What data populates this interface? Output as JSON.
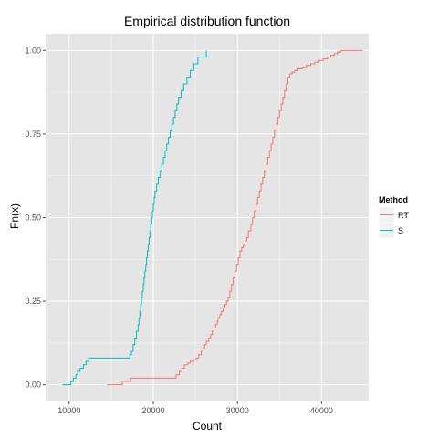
{
  "chart_data": {
    "type": "line",
    "title": "Empirical distribution function",
    "xlabel": "Count",
    "ylabel": "Fn(x)",
    "xlim": [
      7200,
      45600
    ],
    "ylim": [
      -0.05,
      1.05
    ],
    "x_ticks": [
      10000,
      20000,
      30000,
      40000
    ],
    "x_tick_labels": [
      "10000",
      "20000",
      "30000",
      "40000"
    ],
    "y_ticks": [
      0,
      0.25,
      0.5,
      0.75,
      1
    ],
    "y_tick_labels": [
      "0.00",
      "0.25",
      "0.50",
      "0.75",
      "1.00"
    ],
    "grid": true,
    "legend": {
      "title": "Method",
      "position": "right"
    },
    "colors": {
      "panel": "#e5e5e5",
      "grid": "#ffffff",
      "RT": "#f8766d",
      "S": "#00bfc4"
    },
    "series": [
      {
        "name": "RT",
        "x": [
          14500,
          16300,
          17300,
          22700,
          23100,
          23400,
          23700,
          24100,
          24400,
          24800,
          25100,
          25400,
          25700,
          25900,
          26100,
          26300,
          26600,
          26800,
          27000,
          27200,
          27400,
          27600,
          27700,
          27900,
          28100,
          28300,
          28500,
          28700,
          28900,
          29100,
          29300,
          29500,
          29700,
          29900,
          30100,
          30300,
          30500,
          30700,
          30900,
          31100,
          31300,
          31600,
          31800,
          32000,
          32200,
          32400,
          32600,
          32800,
          33000,
          33200,
          33400,
          33600,
          33800,
          34000,
          34200,
          34400,
          34600,
          34800,
          35000,
          35200,
          35400,
          35600,
          35800,
          36000,
          36200,
          36500,
          36800,
          37200,
          37700,
          38200,
          38700,
          39200,
          39700,
          40200,
          40700,
          41100,
          41500,
          41900,
          42300,
          42700,
          43000,
          43300,
          43600,
          43900
        ],
        "y": [
          0,
          0.01,
          0.02,
          0.03,
          0.04,
          0.05,
          0.06,
          0.065,
          0.07,
          0.075,
          0.08,
          0.09,
          0.1,
          0.11,
          0.12,
          0.13,
          0.14,
          0.15,
          0.16,
          0.17,
          0.18,
          0.19,
          0.2,
          0.21,
          0.22,
          0.23,
          0.24,
          0.25,
          0.26,
          0.28,
          0.3,
          0.32,
          0.34,
          0.36,
          0.38,
          0.4,
          0.41,
          0.42,
          0.43,
          0.44,
          0.46,
          0.48,
          0.5,
          0.52,
          0.54,
          0.56,
          0.58,
          0.6,
          0.62,
          0.64,
          0.66,
          0.68,
          0.7,
          0.72,
          0.74,
          0.76,
          0.78,
          0.8,
          0.82,
          0.84,
          0.86,
          0.88,
          0.9,
          0.92,
          0.93,
          0.935,
          0.94,
          0.945,
          0.95,
          0.955,
          0.96,
          0.965,
          0.97,
          0.975,
          0.98,
          0.985,
          0.99,
          0.995,
          1.0,
          1.0,
          1.0,
          1.0,
          1.0,
          1.0
        ]
      },
      {
        "name": "S",
        "x": [
          9200,
          10200,
          10500,
          10800,
          11000,
          11300,
          11700,
          12000,
          12300,
          17200,
          17400,
          17600,
          17800,
          18000,
          18200,
          18300,
          18400,
          18500,
          18600,
          18700,
          18800,
          18900,
          19000,
          19100,
          19200,
          19300,
          19400,
          19500,
          19600,
          19700,
          19800,
          19900,
          20000,
          20100,
          20200,
          20400,
          20600,
          20800,
          21000,
          21200,
          21400,
          21600,
          21800,
          22000,
          22200,
          22400,
          22600,
          22800,
          23000,
          23300,
          23600,
          24000,
          24400,
          24800,
          25300
        ],
        "y": [
          0,
          0.01,
          0.02,
          0.03,
          0.04,
          0.05,
          0.06,
          0.07,
          0.08,
          0.09,
          0.1,
          0.12,
          0.14,
          0.16,
          0.18,
          0.2,
          0.22,
          0.24,
          0.26,
          0.28,
          0.3,
          0.32,
          0.34,
          0.36,
          0.38,
          0.4,
          0.42,
          0.44,
          0.46,
          0.48,
          0.5,
          0.52,
          0.54,
          0.56,
          0.58,
          0.6,
          0.62,
          0.64,
          0.66,
          0.68,
          0.7,
          0.72,
          0.74,
          0.76,
          0.78,
          0.8,
          0.82,
          0.84,
          0.86,
          0.88,
          0.9,
          0.92,
          0.94,
          0.96,
          0.98
        ]
      }
    ]
  }
}
